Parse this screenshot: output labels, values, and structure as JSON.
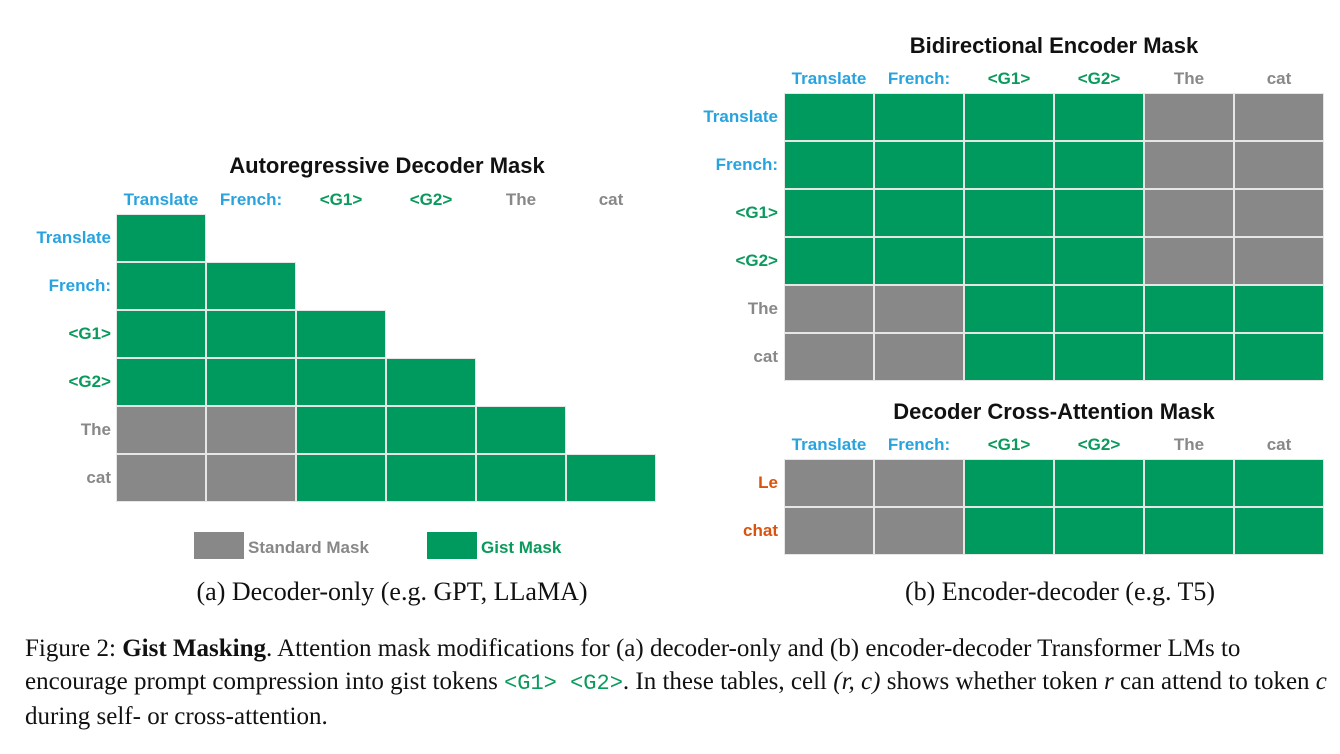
{
  "left": {
    "title": "Autoregressive Decoder Mask",
    "subcaption": "(a) Decoder-only (e.g. GPT, LLaMA)"
  },
  "right_top": {
    "title": "Bidirectional Encoder Mask"
  },
  "right_bottom": {
    "title": "Decoder Cross-Attention Mask",
    "row_tokens": [
      "Le",
      "chat"
    ]
  },
  "right": {
    "subcaption": "(b) Encoder-decoder (e.g. T5)"
  },
  "tokens": [
    "Translate",
    "French:",
    "<G1>",
    "<G2>",
    "The",
    "cat"
  ],
  "token_colors": [
    "blue",
    "blue",
    "green",
    "green",
    "gray",
    "gray"
  ],
  "colors": {
    "gist": "#009a5e",
    "standard": "#888888",
    "prompt_token": "#29a3de",
    "gist_token": "#0a9a5c",
    "input_token": "#888888",
    "output_token": "#d9530f"
  },
  "legend": {
    "standard": "Standard Mask",
    "gist": "Gist Mask"
  },
  "masks": {
    "decoder": [
      [
        "G",
        "",
        "",
        "",
        "",
        ""
      ],
      [
        "G",
        "G",
        "",
        "",
        "",
        ""
      ],
      [
        "G",
        "G",
        "G",
        "",
        "",
        ""
      ],
      [
        "G",
        "G",
        "G",
        "G",
        "",
        ""
      ],
      [
        "S",
        "S",
        "G",
        "G",
        "G",
        ""
      ],
      [
        "S",
        "S",
        "G",
        "G",
        "G",
        "G"
      ]
    ],
    "encoder": [
      [
        "G",
        "G",
        "G",
        "G",
        "S",
        "S"
      ],
      [
        "G",
        "G",
        "G",
        "G",
        "S",
        "S"
      ],
      [
        "G",
        "G",
        "G",
        "G",
        "S",
        "S"
      ],
      [
        "G",
        "G",
        "G",
        "G",
        "S",
        "S"
      ],
      [
        "S",
        "S",
        "G",
        "G",
        "G",
        "G"
      ],
      [
        "S",
        "S",
        "G",
        "G",
        "G",
        "G"
      ]
    ],
    "cross": [
      [
        "S",
        "S",
        "G",
        "G",
        "G",
        "G"
      ],
      [
        "S",
        "S",
        "G",
        "G",
        "G",
        "G"
      ]
    ]
  },
  "caption": {
    "label": "Figure 2: ",
    "bold": "Gist Masking",
    "text1": ". Attention mask modifications for (a) decoder-only and (b) encoder-decoder Transformer LMs to encourage prompt compression into gist tokens ",
    "gist_tokens": "<G1> <G2>",
    "text2": ". In these tables, cell ",
    "cell": "(r, c)",
    "text3": " shows whether token ",
    "r": "r",
    "text4": " can attend to token ",
    "c": "c",
    "text5": " during self- or cross-attention."
  }
}
